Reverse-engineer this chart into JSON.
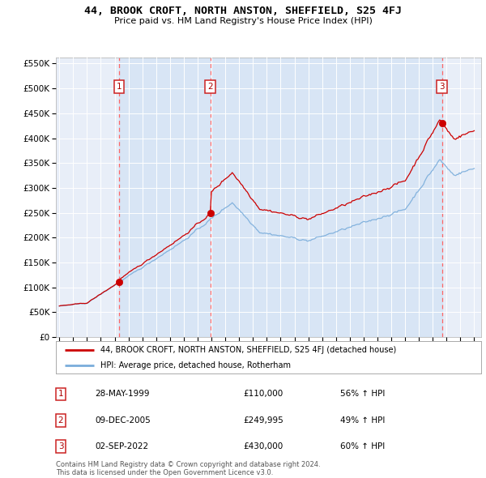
{
  "title": "44, BROOK CROFT, NORTH ANSTON, SHEFFIELD, S25 4FJ",
  "subtitle": "Price paid vs. HM Land Registry's House Price Index (HPI)",
  "yticks": [
    0,
    50000,
    100000,
    150000,
    200000,
    250000,
    300000,
    350000,
    400000,
    450000,
    500000,
    550000
  ],
  "sale_prices": [
    110000,
    249995,
    430000
  ],
  "sale_labels": [
    "1",
    "2",
    "3"
  ],
  "sale_info": [
    {
      "label": "1",
      "date": "28-MAY-1999",
      "price": "£110,000",
      "pct": "56%",
      "dir": "↑ HPI"
    },
    {
      "label": "2",
      "date": "09-DEC-2005",
      "price": "£249,995",
      "pct": "49%",
      "dir": "↑ HPI"
    },
    {
      "label": "3",
      "date": "02-SEP-2022",
      "price": "£430,000",
      "pct": "60%",
      "dir": "↑ HPI"
    }
  ],
  "legend_red": "44, BROOK CROFT, NORTH ANSTON, SHEFFIELD, S25 4FJ (detached house)",
  "legend_blue": "HPI: Average price, detached house, Rotherham",
  "copyright": "Contains HM Land Registry data © Crown copyright and database right 2024.\nThis data is licensed under the Open Government Licence v3.0.",
  "red_color": "#cc0000",
  "blue_color": "#7aaddb",
  "vline_color": "#ff8888",
  "xmin": 1994.75,
  "xmax": 2025.5,
  "ymin": 0,
  "ymax": 562500
}
